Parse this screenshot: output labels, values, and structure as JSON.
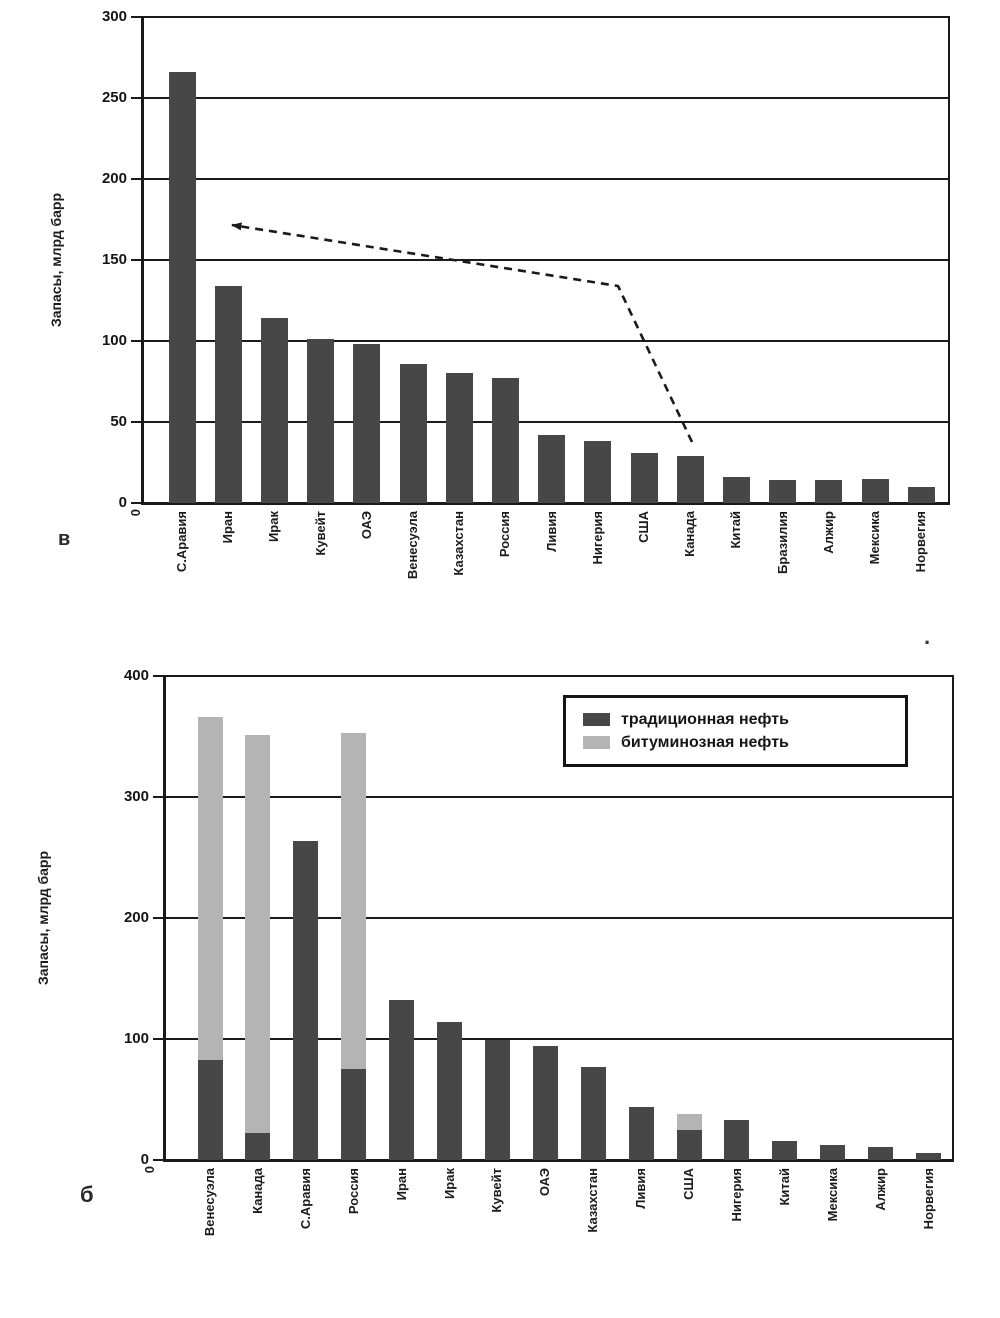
{
  "figure": {
    "description": "Two-panel scanned bar chart of world oil reserves by country",
    "stray_dot": "."
  },
  "colors": {
    "bar_dark": "#474747",
    "bar_light": "#b4b4b4",
    "axis": "#1a1a1a",
    "background": "#ffffff"
  },
  "chart_data": [
    {
      "type": "bar",
      "panel_label": "в",
      "ylabel": "Запасы, млрд барр",
      "ylim": [
        0,
        300
      ],
      "yticks": [
        300,
        250,
        200,
        150,
        100,
        50,
        0
      ],
      "origin_label": "0",
      "grid": true,
      "categories": [
        "С.Аравия",
        "Иран",
        "Ирак",
        "Кувейт",
        "ОАЭ",
        "Венесуэла",
        "Казахстан",
        "Россия",
        "Ливия",
        "Нигерия",
        "США",
        "Канада",
        "Китай",
        "Бразилия",
        "Алжир",
        "Мексика",
        "Норвегия"
      ],
      "values": [
        266,
        134,
        114,
        101,
        98,
        86,
        80,
        77,
        42,
        38,
        31,
        29,
        16,
        14,
        14,
        15,
        10
      ],
      "bar_color": "#474747",
      "annotation": {
        "type": "dashed-arrow",
        "description": "dashed arrow from the top of the Канада bar pointing up-left to the ~175 level near Иран"
      }
    },
    {
      "type": "stacked-bar",
      "panel_label": "б",
      "ylabel": "Запасы, млрд барр",
      "ylim": [
        0,
        400
      ],
      "yticks": [
        400,
        300,
        200,
        100,
        0
      ],
      "origin_label": "0",
      "grid": true,
      "legend_position": "top-right",
      "categories": [
        "Венесуэла",
        "Канада",
        "С.Аравия",
        "Россия",
        "Иран",
        "Ирак",
        "Кувейт",
        "ОАЭ",
        "Казахстан",
        "Ливия",
        "США",
        "Нигерия",
        "Китай",
        "Мексика",
        "Алжир",
        "Норвегия"
      ],
      "series": [
        {
          "name": "традиционная нефть",
          "color": "#474747",
          "values": [
            83,
            22,
            264,
            75,
            132,
            114,
            99,
            94,
            77,
            44,
            25,
            33,
            16,
            12,
            11,
            6
          ]
        },
        {
          "name": "битуминозная нефть",
          "color": "#b4b4b4",
          "values": [
            283,
            329,
            0,
            278,
            0,
            0,
            0,
            0,
            0,
            0,
            13,
            0,
            0,
            0,
            0,
            0
          ]
        }
      ]
    }
  ]
}
